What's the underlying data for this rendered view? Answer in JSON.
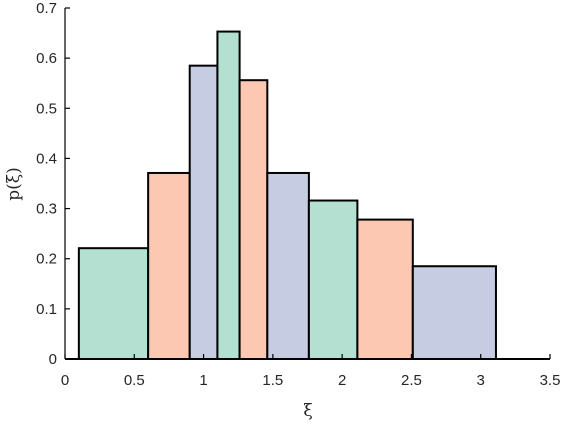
{
  "chart_data": {
    "type": "bar",
    "subtype": "variable-width histogram",
    "title": "",
    "xlabel": "ξ",
    "ylabel": "p(ξ)",
    "xlim": [
      0,
      3.5
    ],
    "ylim": [
      0,
      0.7
    ],
    "xticks": [
      "0",
      "0.5",
      "1",
      "1.5",
      "2",
      "2.5",
      "3",
      "3.5"
    ],
    "yticks": [
      "0",
      "0.1",
      "0.2",
      "0.3",
      "0.4",
      "0.5",
      "0.6",
      "0.7"
    ],
    "grid": false,
    "legend": "none",
    "colors": [
      "#b3e0d0",
      "#fcc8b1",
      "#c6cde3"
    ],
    "bins": [
      {
        "x0": 0.1,
        "x1": 0.6,
        "value": 0.221,
        "color": "#b3e0d0"
      },
      {
        "x0": 0.6,
        "x1": 0.9,
        "value": 0.371,
        "color": "#fcc8b1"
      },
      {
        "x0": 0.9,
        "x1": 1.1,
        "value": 0.585,
        "color": "#c6cde3"
      },
      {
        "x0": 1.1,
        "x1": 1.26,
        "value": 0.653,
        "color": "#b3e0d0"
      },
      {
        "x0": 1.26,
        "x1": 1.46,
        "value": 0.556,
        "color": "#fcc8b1"
      },
      {
        "x0": 1.46,
        "x1": 1.76,
        "value": 0.371,
        "color": "#c6cde3"
      },
      {
        "x0": 1.76,
        "x1": 2.11,
        "value": 0.316,
        "color": "#b3e0d0"
      },
      {
        "x0": 2.11,
        "x1": 2.51,
        "value": 0.278,
        "color": "#fcc8b1"
      },
      {
        "x0": 2.51,
        "x1": 3.11,
        "value": 0.185,
        "color": "#c6cde3"
      }
    ]
  }
}
